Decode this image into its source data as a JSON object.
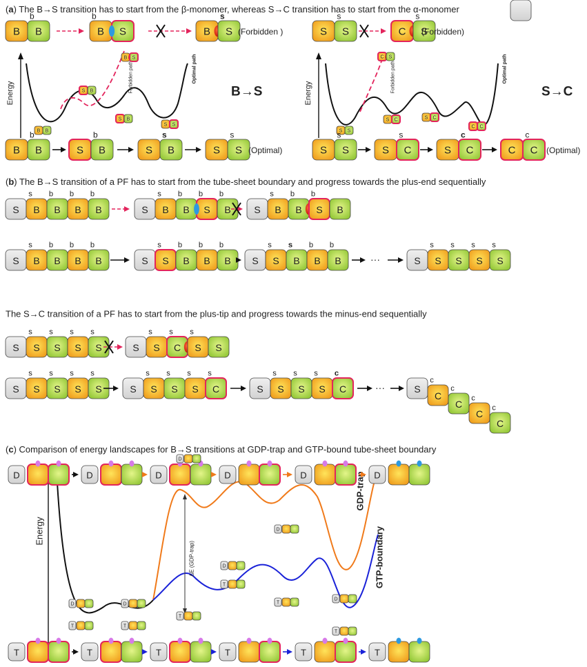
{
  "panel_a": {
    "heading": {
      "open": "(",
      "label": "a",
      "text": ") The B→S transition has to start from the β-monomer, whereas S→C transition has to start from the α-monomer"
    },
    "left": {
      "forbidden_row": [
        [
          {
            "letter": "B"
          },
          {
            "letter": "B",
            "sup": "b"
          }
        ],
        [
          {
            "letter": "B",
            "sup": "b"
          },
          {
            "letter": "S"
          }
        ],
        [
          {
            "letter": "B"
          },
          {
            "letter": "S",
            "sup": "s"
          }
        ]
      ],
      "forbidden_note": "(Forbidden )",
      "energy_label": "Energy",
      "forbidden_path": "Forbidden path",
      "optimal_path": "Optimal path",
      "transition": "B→S",
      "minis": [
        [
          "B",
          "B"
        ],
        [
          "S",
          "B"
        ],
        [
          "B",
          "S"
        ],
        [
          "S",
          "B"
        ],
        [
          "S",
          "S"
        ]
      ],
      "optimal_row": [
        [
          {
            "letter": "B"
          },
          {
            "letter": "B",
            "sup": "b"
          }
        ],
        [
          {
            "letter": "S"
          },
          {
            "letter": "B",
            "sup": "b"
          }
        ],
        [
          {
            "letter": "S"
          },
          {
            "letter": "B",
            "sup": "s"
          }
        ],
        [
          {
            "letter": "S"
          },
          {
            "letter": "S",
            "sup": "s"
          }
        ]
      ],
      "optimal_note": "(Optimal)"
    },
    "right": {
      "forbidden_row": [
        [
          {
            "letter": "S"
          },
          {
            "letter": "S",
            "sup": "s"
          }
        ],
        [
          {
            "letter": "C"
          },
          {
            "letter": "S",
            "sup": "s"
          }
        ]
      ],
      "forbidden_note": "(Forbidden)",
      "energy_label": "Energy",
      "forbidden_path": "Forbidden path",
      "optimal_path": "Optimal path",
      "transition": "S→C",
      "minis": [
        [
          "S",
          "S"
        ],
        [
          "C",
          "S"
        ],
        [
          "S",
          "C"
        ],
        [
          "S",
          "C"
        ],
        [
          "C",
          "C"
        ]
      ],
      "optimal_row": [
        [
          {
            "letter": "S"
          },
          {
            "letter": "S",
            "sup": "s"
          }
        ],
        [
          {
            "letter": "S"
          },
          {
            "letter": "C",
            "sup": "s"
          }
        ],
        [
          {
            "letter": "S"
          },
          {
            "letter": "C",
            "sup": "c"
          }
        ],
        [
          {
            "letter": "C"
          },
          {
            "letter": "C",
            "sup": "c"
          }
        ]
      ],
      "optimal_note": "(Optimal)"
    }
  },
  "panel_b": {
    "heading": {
      "open": "(",
      "label": "b",
      "text": ") The B→S transition of a PF has to start from the tube-sheet boundary and progress towards the plus-end sequentially"
    },
    "row_1": [
      [
        {
          "letter": "S"
        },
        {
          "letter": "B",
          "sup": "s"
        },
        {
          "letter": "B",
          "sup": "b"
        },
        {
          "letter": "B",
          "sup": "b"
        },
        {
          "letter": "B",
          "sup": "b"
        }
      ],
      [
        {
          "letter": "S"
        },
        {
          "letter": "B",
          "sup": "s"
        },
        {
          "letter": "B",
          "sup": "b"
        },
        {
          "letter": "S",
          "sup": "b"
        },
        {
          "letter": "B",
          "sup": "b"
        }
      ],
      [
        {
          "letter": "S"
        },
        {
          "letter": "B",
          "sup": "s"
        },
        {
          "letter": "B",
          "sup": "b"
        },
        {
          "letter": "S",
          "sup": "b"
        },
        {
          "letter": "B"
        }
      ]
    ],
    "row_2": [
      [
        {
          "letter": "S"
        },
        {
          "letter": "B",
          "sup": "s"
        },
        {
          "letter": "B",
          "sup": "b"
        },
        {
          "letter": "B",
          "sup": "b"
        },
        {
          "letter": "B",
          "sup": "b"
        }
      ],
      [
        {
          "letter": "S"
        },
        {
          "letter": "S",
          "sup": "s"
        },
        {
          "letter": "B",
          "sup": "b"
        },
        {
          "letter": "B",
          "sup": "b"
        },
        {
          "letter": "B",
          "sup": "b"
        }
      ],
      [
        {
          "letter": "S"
        },
        {
          "letter": "S",
          "sup": "s"
        },
        {
          "letter": "B",
          "sup": "s"
        },
        {
          "letter": "B",
          "sup": "b"
        },
        {
          "letter": "B",
          "sup": "b"
        }
      ],
      [
        {
          "letter": "S"
        },
        {
          "letter": "S",
          "sup": "s"
        },
        {
          "letter": "S",
          "sup": "s"
        },
        {
          "letter": "S",
          "sup": "s"
        },
        {
          "letter": "S",
          "sup": "s"
        }
      ]
    ],
    "ellipsis_1": "···",
    "sentence": "The S→C transition of a PF has to start from the plus-tip and progress  towards the minus-end  sequentially",
    "row_3": [
      [
        {
          "letter": "S"
        },
        {
          "letter": "S",
          "sup": "s"
        },
        {
          "letter": "S",
          "sup": "s"
        },
        {
          "letter": "S",
          "sup": "s"
        },
        {
          "letter": "S",
          "sup": "s"
        }
      ],
      [
        {
          "letter": "S"
        },
        {
          "letter": "S",
          "sup": "s"
        },
        {
          "letter": "C",
          "sup": "s"
        },
        {
          "letter": "S",
          "sup": "s"
        },
        {
          "letter": "S"
        }
      ]
    ],
    "row_4": [
      [
        {
          "letter": "S"
        },
        {
          "letter": "S",
          "sup": "s"
        },
        {
          "letter": "S",
          "sup": "s"
        },
        {
          "letter": "S",
          "sup": "s"
        },
        {
          "letter": "S",
          "sup": "s"
        }
      ],
      [
        {
          "letter": "S"
        },
        {
          "letter": "S",
          "sup": "s"
        },
        {
          "letter": "S",
          "sup": "s"
        },
        {
          "letter": "S",
          "sup": "s"
        },
        {
          "letter": "C",
          "sup": "s"
        }
      ],
      [
        {
          "letter": "S"
        },
        {
          "letter": "S",
          "sup": "s"
        },
        {
          "letter": "S",
          "sup": "s"
        },
        {
          "letter": "S",
          "sup": "s"
        },
        {
          "letter": "C",
          "sup": "c"
        }
      ],
      [
        {
          "letter": "S"
        },
        {
          "letter": "C",
          "sup": "c"
        },
        {
          "letter": "C",
          "sup": "c"
        },
        {
          "letter": "C",
          "sup": "c"
        },
        {
          "letter": "C",
          "sup": "c"
        }
      ]
    ],
    "ellipsis_2": "···"
  },
  "panel_c": {
    "heading": {
      "open": "(",
      "label": "c",
      "text": ") Comparison of energy landscapes for B→S transitions at GDP-trap and GTP-bound tube-sheet boundary"
    },
    "top_row": [
      "D",
      "D",
      "D",
      "D",
      "D",
      "D"
    ],
    "bottom_row": [
      "T",
      "T",
      "T",
      "T",
      "T",
      "T"
    ],
    "energy_label": "Energy",
    "gdp_label": "GDP-trap",
    "gtp_label": "GTP-boundary",
    "delta_e": "ΔE (GDP-trap)",
    "gdp_minis": [
      "D",
      "D",
      "D",
      "D",
      "D",
      "D"
    ],
    "gtp_minis": [
      "T",
      "T",
      "T",
      "T",
      "T",
      "T"
    ]
  }
}
